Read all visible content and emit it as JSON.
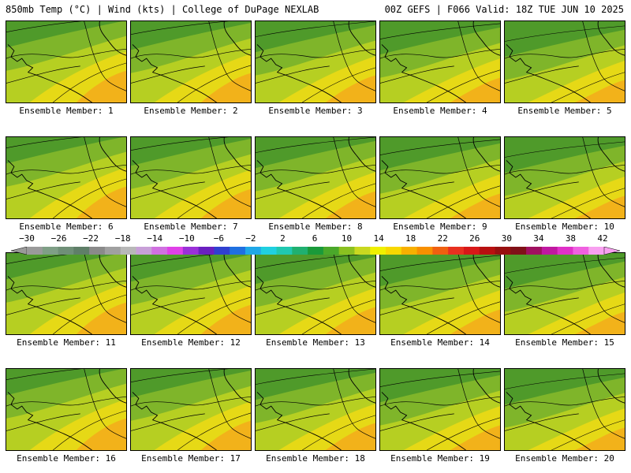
{
  "header": {
    "left": "850mb Temp (°C) | Wind (kts) | College of DuPage NEXLAB",
    "right": "00Z GEFS | F066 Valid: 18Z TUE JUN 10 2025"
  },
  "members": [
    {
      "label": "Ensemble Member: 1"
    },
    {
      "label": "Ensemble Member: 2"
    },
    {
      "label": "Ensemble Member: 3"
    },
    {
      "label": "Ensemble Member: 4"
    },
    {
      "label": "Ensemble Member: 5"
    },
    {
      "label": "Ensemble Member: 6"
    },
    {
      "label": "Ensemble Member: 7"
    },
    {
      "label": "Ensemble Member: 8"
    },
    {
      "label": "Ensemble Member: 9"
    },
    {
      "label": "Ensemble Member: 10"
    },
    {
      "label": "Ensemble Member: 11"
    },
    {
      "label": "Ensemble Member: 12"
    },
    {
      "label": "Ensemble Member: 13"
    },
    {
      "label": "Ensemble Member: 14"
    },
    {
      "label": "Ensemble Member: 15"
    },
    {
      "label": "Ensemble Member: 16"
    },
    {
      "label": "Ensemble Member: 17"
    },
    {
      "label": "Ensemble Member: 18"
    },
    {
      "label": "Ensemble Member: 19"
    },
    {
      "label": "Ensemble Member: 20"
    }
  ],
  "colorbar": {
    "tick_labels": [
      "−30",
      "−26",
      "−22",
      "−18",
      "−14",
      "−10",
      "−6",
      "−2",
      "2",
      "6",
      "10",
      "14",
      "18",
      "22",
      "26",
      "30",
      "34",
      "38",
      "42"
    ],
    "colors": [
      "#9a9a9a",
      "#7f9f86",
      "#6f8f77",
      "#5f7f68",
      "#8a8a8a",
      "#a0a0a0",
      "#b8b8b8",
      "#c8a0d8",
      "#d070e0",
      "#e040e8",
      "#9a30d8",
      "#6a20c0",
      "#3040d0",
      "#2070e0",
      "#20a8e8",
      "#20d0e0",
      "#20c8b0",
      "#20b070",
      "#1a9a3a",
      "#4aa82a",
      "#8ac020",
      "#c8d820",
      "#f0f000",
      "#f8d800",
      "#f8b000",
      "#f89000",
      "#f06010",
      "#e83020",
      "#d81818",
      "#b81010",
      "#981010",
      "#801018",
      "#a01060",
      "#c018a0",
      "#e030c8",
      "#f060e0",
      "#f8a0f0"
    ],
    "color_meaning": "850mb temperature (°C)"
  }
}
